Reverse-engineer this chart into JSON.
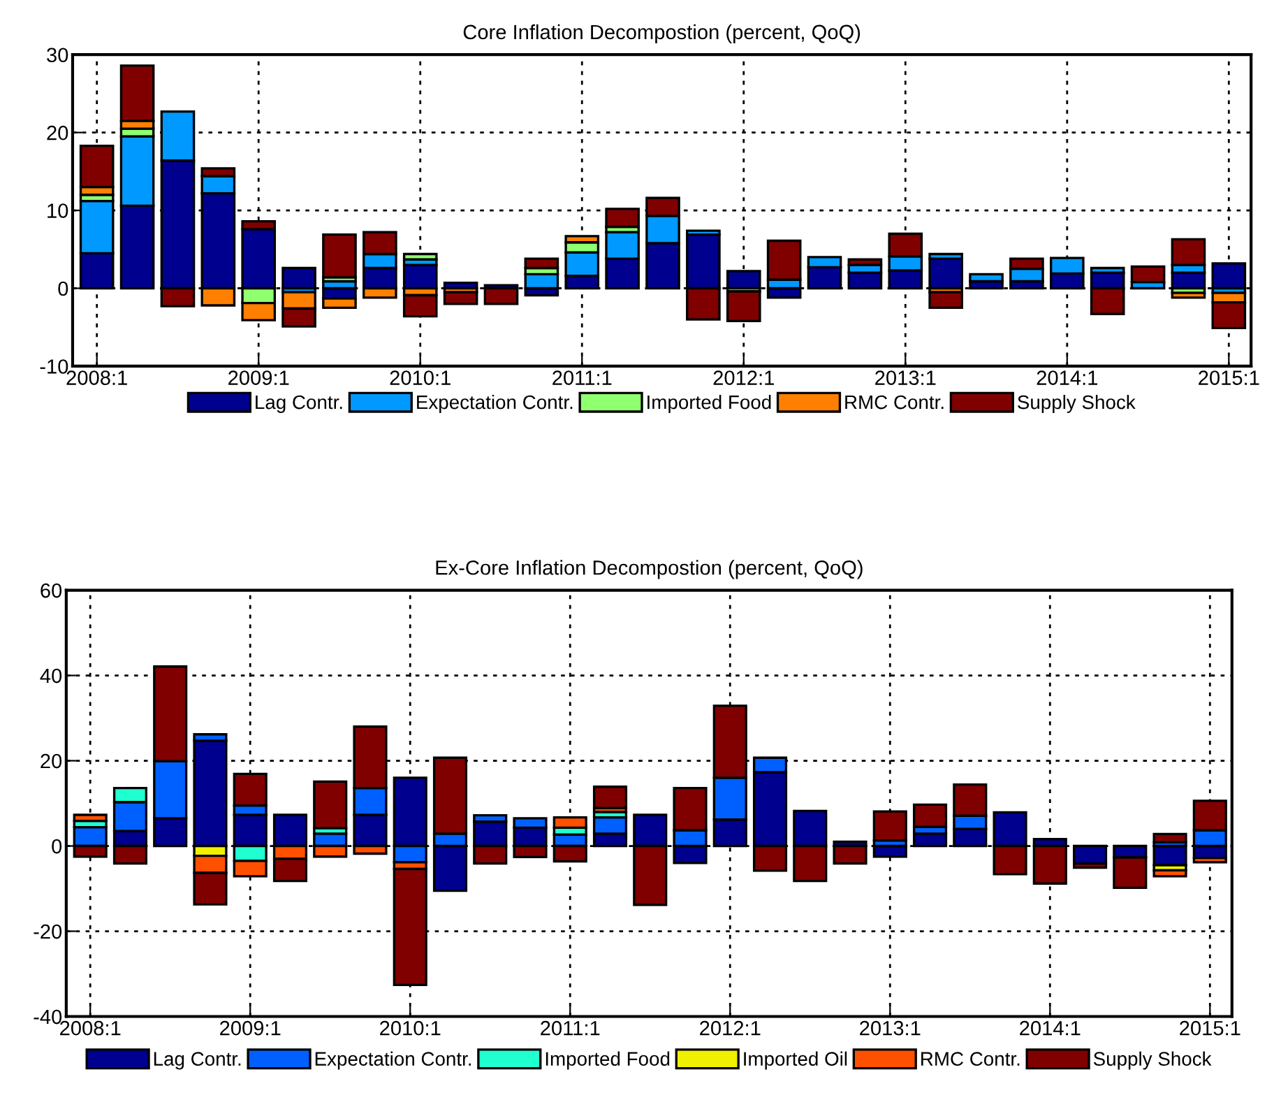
{
  "chart_data": [
    {
      "type": "bar",
      "stacked": true,
      "title": "Core Inflation Decompostion (percent, QoQ)",
      "categories": [
        "2008:1",
        null,
        null,
        null,
        "2009:1",
        null,
        null,
        null,
        "2010:1",
        null,
        null,
        null,
        "2011:1",
        null,
        null,
        null,
        "2012:1",
        null,
        null,
        null,
        "2013:1",
        null,
        null,
        null,
        "2014:1",
        null,
        null,
        null,
        "2015:1"
      ],
      "ylim": [
        -10,
        30
      ],
      "yticks": [
        -10,
        0,
        10,
        20,
        30
      ],
      "grid": true,
      "legend": "bottom",
      "series": [
        {
          "name": "Lag Contr.",
          "color": "#00008f",
          "values": [
            4.5,
            10.6,
            16.4,
            12.2,
            7.6,
            2.6,
            -1.3,
            2.6,
            3.0,
            0.7,
            0.4,
            -0.9,
            1.6,
            3.8,
            5.8,
            6.9,
            2.2,
            -1.2,
            2.7,
            2.0,
            2.3,
            3.8,
            0.9,
            0.9,
            1.9,
            2.0,
            null,
            2.0,
            3.2
          ]
        },
        {
          "name": "Expectation Contr.",
          "color": "#0099ff",
          "values": [
            6.7,
            8.9,
            6.3,
            2.2,
            0,
            -0.5,
            0.9,
            1.8,
            0.7,
            0,
            0,
            1.8,
            3.0,
            3.4,
            3.5,
            0.5,
            0,
            1.1,
            1.3,
            1.0,
            1.8,
            0.6,
            0.9,
            1.6,
            2.0,
            0.6,
            0.8,
            1.0,
            -0.6
          ]
        },
        {
          "name": "Imported Food",
          "color": "#90ff70",
          "values": [
            0.8,
            1.0,
            0,
            0,
            -1.9,
            0,
            0.5,
            0,
            0.7,
            0,
            0,
            0.8,
            1.3,
            0.7,
            0,
            0,
            -0.4,
            0,
            0,
            0,
            0,
            0,
            0,
            0,
            0,
            0,
            0,
            -0.6,
            0
          ]
        },
        {
          "name": "RMC Contr.",
          "color": "#ff8000",
          "values": [
            1.0,
            1.0,
            0,
            -2.2,
            -2.2,
            -2.1,
            -1.2,
            -1.2,
            -0.9,
            -0.5,
            0,
            0,
            0.8,
            0,
            0,
            0,
            0,
            0,
            0,
            0,
            0,
            -0.5,
            0,
            0,
            0,
            0,
            0,
            -0.6,
            -1.2
          ]
        },
        {
          "name": "Supply Shock",
          "color": "#800000",
          "values": [
            5.3,
            7.1,
            -2.3,
            1.0,
            1.0,
            -2.3,
            5.5,
            2.8,
            -2.7,
            -1.5,
            -2.0,
            1.2,
            0,
            2.3,
            2.3,
            -4.0,
            -3.8,
            5.0,
            0,
            0.7,
            2.9,
            -2.0,
            0,
            1.3,
            0,
            -3.3,
            2.0,
            3.3,
            -3.3
          ]
        }
      ]
    },
    {
      "type": "bar",
      "stacked": true,
      "title": "Ex-Core Inflation Decompostion (percent, QoQ)",
      "categories": [
        "2008:1",
        null,
        null,
        null,
        "2009:1",
        null,
        null,
        null,
        "2010:1",
        null,
        null,
        null,
        "2011:1",
        null,
        null,
        null,
        "2012:1",
        null,
        null,
        null,
        "2013:1",
        null,
        null,
        null,
        "2014:1",
        null,
        null,
        null,
        "2015:1"
      ],
      "ylim": [
        -40,
        60
      ],
      "yticks": [
        -40,
        -20,
        0,
        20,
        40,
        60
      ],
      "grid": true,
      "legend": "bottom",
      "series": [
        {
          "name": "Lag Contr.",
          "color": "#00008f",
          "values": [
            null,
            3.5,
            6.5,
            24.7,
            7.3,
            7.3,
            null,
            7.3,
            16.0,
            -10.5,
            5.7,
            4.3,
            null,
            2.9,
            7.3,
            -4.0,
            6.2,
            17.3,
            8.2,
            1.0,
            -2.5,
            2.9,
            4.0,
            7.9,
            1.6,
            -4.1,
            -2.7,
            -4.5,
            -2.8
          ]
        },
        {
          "name": "Expectation Contr.",
          "color": "#0060ff",
          "values": [
            4.4,
            6.8,
            13.4,
            1.5,
            2.2,
            0,
            2.9,
            6.3,
            -3.8,
            2.9,
            1.5,
            2.2,
            2.7,
            3.8,
            0,
            3.7,
            9.8,
            3.4,
            0,
            0,
            1.3,
            1.6,
            3.1,
            0,
            0,
            0,
            0,
            0.9,
            3.7
          ]
        },
        {
          "name": "Imported Food",
          "color": "#20ffd0",
          "values": [
            1.5,
            3.3,
            0,
            0,
            -3.5,
            0,
            1.3,
            0,
            0,
            0,
            0,
            0,
            1.6,
            1.3,
            0,
            0,
            0,
            0,
            0,
            0,
            0,
            0,
            0,
            0,
            0,
            0,
            0,
            0,
            0
          ]
        },
        {
          "name": "Imported Oil",
          "color": "#f0f000",
          "values": [
            0,
            0,
            0,
            -2.3,
            0,
            0,
            0,
            0,
            0,
            0,
            0,
            0,
            0,
            0,
            0,
            0,
            0,
            0,
            0,
            0,
            0,
            0,
            0,
            0,
            0,
            0,
            0,
            -1.2,
            0
          ]
        },
        {
          "name": "RMC Contr.",
          "color": "#ff5000",
          "values": [
            1.4,
            0,
            0,
            -4.0,
            -3.6,
            -3.0,
            -2.5,
            -1.8,
            -1.6,
            0,
            0,
            0,
            2.4,
            0.9,
            0,
            0,
            0,
            0,
            0,
            0,
            0,
            0,
            0,
            0,
            0,
            0,
            0,
            -1.4,
            -1.0
          ]
        },
        {
          "name": "Supply Shock",
          "color": "#800000",
          "values": [
            -2.5,
            -4.1,
            22.2,
            -7.4,
            7.4,
            -5.2,
            10.9,
            14.4,
            -27.2,
            17.8,
            -4.1,
            -2.6,
            -3.6,
            5.0,
            -13.8,
            9.9,
            16.9,
            -5.8,
            -8.2,
            -4.1,
            6.8,
            5.2,
            7.3,
            -6.6,
            -8.8,
            -1.0,
            -7.1,
            1.9,
            6.9
          ]
        }
      ]
    }
  ]
}
